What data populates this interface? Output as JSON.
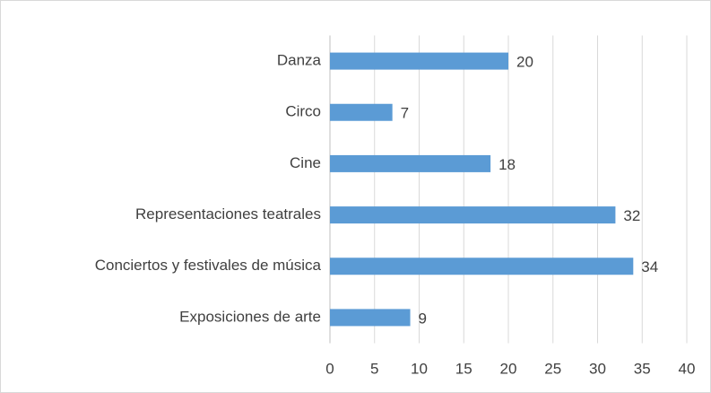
{
  "chart_data": {
    "type": "bar",
    "orientation": "horizontal",
    "categories": [
      "Danza",
      "Circo",
      "Cine",
      "Representaciones teatrales",
      "Conciertos y festivales de música",
      "Exposiciones de arte"
    ],
    "values": [
      20,
      7,
      18,
      32,
      34,
      9
    ],
    "color": "#5b9bd5",
    "xlim": [
      0,
      40
    ],
    "xticks": [
      0,
      5,
      10,
      15,
      20,
      25,
      30,
      35,
      40
    ],
    "grid": true,
    "data_labels": true
  }
}
